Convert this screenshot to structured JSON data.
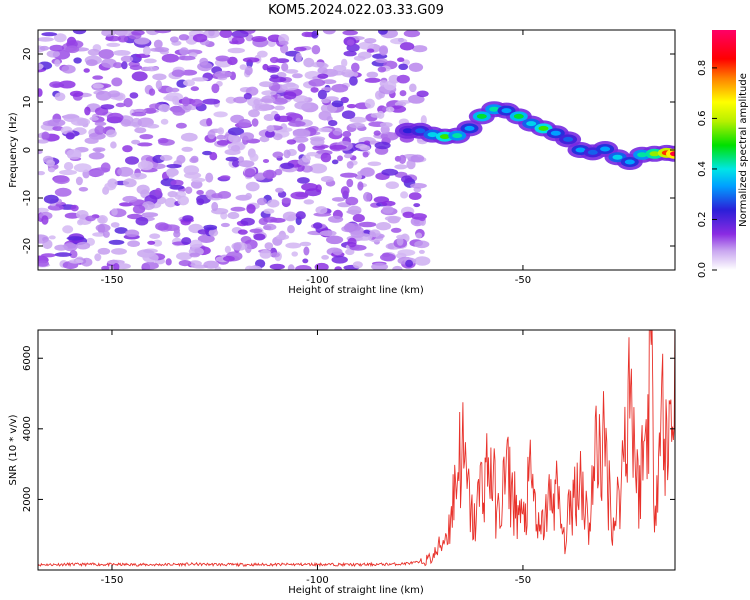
{
  "figure_title": "KOM5.2024.022.03.33.G09",
  "chart_data": [
    {
      "type": "heatmap",
      "xlabel": "Height of straight line (km)",
      "ylabel": "Frequency (Hz)",
      "xlim": [
        -168,
        -13
      ],
      "ylim": [
        -25,
        25
      ],
      "x_ticks": [
        -150,
        -100,
        -50
      ],
      "y_ticks": [
        -20,
        -10,
        0,
        10,
        20
      ],
      "noise_region": {
        "x_range": [
          -168,
          -74
        ],
        "y_range": [
          -25,
          25
        ],
        "level": 0.12
      },
      "signal_ridge": [
        {
          "x": -78,
          "y": 4.0,
          "amp": 0.25
        },
        {
          "x": -75,
          "y": 4.0,
          "amp": 0.3
        },
        {
          "x": -72,
          "y": 3.2,
          "amp": 0.4
        },
        {
          "x": -69,
          "y": 2.8,
          "amp": 0.55
        },
        {
          "x": -66,
          "y": 3.0,
          "amp": 0.45
        },
        {
          "x": -63,
          "y": 4.5,
          "amp": 0.35
        },
        {
          "x": -60,
          "y": 7.0,
          "amp": 0.5
        },
        {
          "x": -57,
          "y": 8.5,
          "amp": 0.45
        },
        {
          "x": -54,
          "y": 8.2,
          "amp": 0.35
        },
        {
          "x": -51,
          "y": 7.0,
          "amp": 0.5
        },
        {
          "x": -48,
          "y": 5.5,
          "amp": 0.4
        },
        {
          "x": -45,
          "y": 4.5,
          "amp": 0.55
        },
        {
          "x": -42,
          "y": 3.5,
          "amp": 0.35
        },
        {
          "x": -39,
          "y": 2.2,
          "amp": 0.3
        },
        {
          "x": -36,
          "y": 0.0,
          "amp": 0.35
        },
        {
          "x": -33,
          "y": -0.5,
          "amp": 0.3
        },
        {
          "x": -30,
          "y": 0.2,
          "amp": 0.35
        },
        {
          "x": -27,
          "y": -1.5,
          "amp": 0.4
        },
        {
          "x": -24,
          "y": -2.5,
          "amp": 0.35
        },
        {
          "x": -21,
          "y": -1.0,
          "amp": 0.45
        },
        {
          "x": -18,
          "y": -0.8,
          "amp": 0.6
        },
        {
          "x": -15,
          "y": -0.6,
          "amp": 0.85
        },
        {
          "x": -13,
          "y": -0.8,
          "amp": 0.95
        }
      ],
      "colorbar": {
        "label": "Normalized spectral amplitude",
        "range": [
          0,
          0.95
        ],
        "ticks": [
          0.0,
          0.2,
          0.4,
          0.6,
          0.8
        ],
        "tick_labels": [
          "0.0",
          "0.2",
          "0.4",
          "0.6",
          "0.8"
        ]
      }
    },
    {
      "type": "line",
      "xlabel": "Height of straight line (km)",
      "ylabel": "SNR (10 * v/v)",
      "xlim": [
        -168,
        -13
      ],
      "ylim": [
        0,
        6800
      ],
      "x_ticks": [
        -150,
        -100,
        -50
      ],
      "y_ticks": [
        2000,
        4000,
        6000
      ],
      "line_color": "#e8312a",
      "series": [
        {
          "x": [
            -168,
            -160,
            -150,
            -140,
            -130,
            -120,
            -110,
            -100,
            -90,
            -80,
            -75,
            -72,
            -70,
            -68,
            -66,
            -65,
            -64,
            -62,
            -60,
            -58,
            -56,
            -54,
            -52,
            -50,
            -48,
            -46,
            -44,
            -42,
            -40,
            -38,
            -36,
            -34,
            -32,
            -30,
            -28,
            -26,
            -24,
            -22,
            -20,
            -19,
            -18,
            -16,
            -15,
            -14,
            -13
          ],
          "y": [
            150,
            160,
            155,
            150,
            165,
            150,
            155,
            160,
            150,
            170,
            220,
            350,
            700,
            1200,
            2800,
            3600,
            2600,
            1200,
            2500,
            3000,
            1500,
            2800,
            1900,
            1300,
            2600,
            900,
            1800,
            2300,
            800,
            2000,
            2800,
            1200,
            3600,
            3300,
            1200,
            2600,
            5600,
            2200,
            3800,
            6800,
            2100,
            4600,
            3200,
            4300,
            5900
          ]
        }
      ]
    }
  ]
}
